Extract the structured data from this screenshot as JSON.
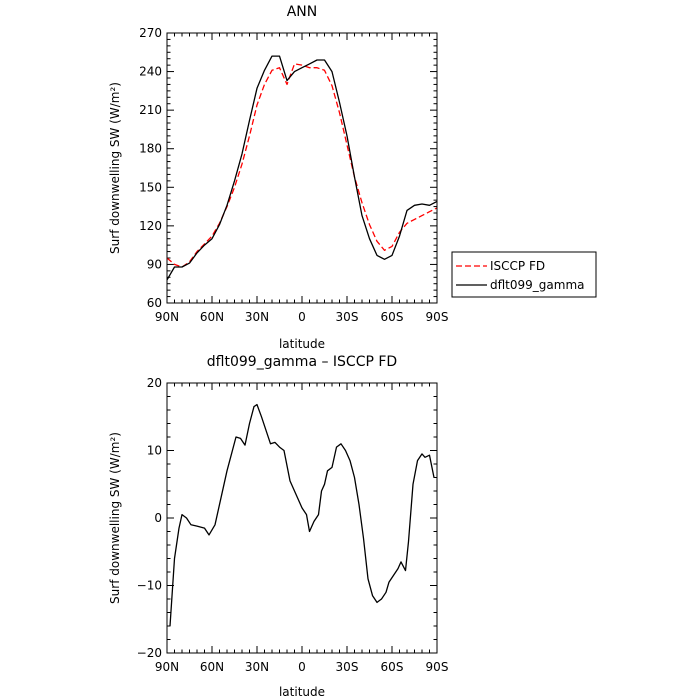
{
  "chart_data": [
    {
      "type": "line",
      "title": "ANN",
      "xlabel": "latitude",
      "ylabel": "Surf downwelling SW (W/m²)",
      "xlim": [
        90,
        -90
      ],
      "ylim": [
        60,
        270
      ],
      "xticks": [
        90,
        60,
        30,
        0,
        -30,
        -60,
        -90
      ],
      "xtick_labels": [
        "90N",
        "60N",
        "30N",
        "0",
        "30S",
        "60S",
        "90S"
      ],
      "yticks": [
        60,
        90,
        120,
        150,
        180,
        210,
        240,
        270
      ],
      "ytick_labels": [
        "60",
        "90",
        "120",
        "150",
        "180",
        "210",
        "240",
        "270"
      ],
      "legend_position": "outside-right",
      "series": [
        {
          "name": "ISCCP FD",
          "color": "#ff0000",
          "style": "dashed",
          "x": [
            90,
            85,
            80,
            75,
            70,
            65,
            60,
            55,
            50,
            45,
            40,
            35,
            30,
            25,
            20,
            15,
            10,
            5,
            0,
            -5,
            -10,
            -15,
            -20,
            -25,
            -30,
            -35,
            -40,
            -45,
            -50,
            -55,
            -60,
            -65,
            -70,
            -75,
            -80,
            -85,
            -90
          ],
          "y": [
            95,
            90,
            88,
            92,
            100,
            106,
            112,
            122,
            135,
            150,
            168,
            190,
            214,
            230,
            241,
            243,
            230,
            246,
            245,
            243,
            243,
            241,
            229,
            208,
            183,
            158,
            138,
            121,
            108,
            101,
            104,
            115,
            122,
            125,
            128,
            131,
            134
          ]
        },
        {
          "name": "dflt099_gamma",
          "color": "#000000",
          "style": "solid",
          "x": [
            90,
            85,
            80,
            75,
            70,
            65,
            60,
            55,
            50,
            45,
            40,
            35,
            30,
            25,
            20,
            15,
            10,
            5,
            0,
            -5,
            -10,
            -15,
            -20,
            -25,
            -30,
            -35,
            -40,
            -45,
            -50,
            -55,
            -60,
            -65,
            -70,
            -75,
            -80,
            -85,
            -90
          ],
          "y": [
            78,
            88,
            88,
            91,
            99,
            105,
            110,
            121,
            136,
            155,
            176,
            202,
            227,
            241,
            252,
            252,
            233,
            240,
            243,
            246,
            249,
            249,
            240,
            216,
            190,
            158,
            128,
            110,
            97,
            94,
            97,
            112,
            132,
            136,
            137,
            136,
            139
          ]
        }
      ]
    },
    {
      "type": "line",
      "title": "dflt099_gamma – ISCCP FD",
      "xlabel": "latitude",
      "ylabel": "Surf downwelling SW (W/m²)",
      "xlim": [
        90,
        -90
      ],
      "ylim": [
        -20,
        20
      ],
      "xticks": [
        90,
        60,
        30,
        0,
        -30,
        -60,
        -90
      ],
      "xtick_labels": [
        "90N",
        "60N",
        "30N",
        "0",
        "30S",
        "60S",
        "90S"
      ],
      "yticks": [
        -20,
        -10,
        0,
        10,
        20
      ],
      "ytick_labels": [
        "−20",
        "−10",
        "0",
        "10",
        "20"
      ],
      "series": [
        {
          "color": "#000000",
          "style": "solid",
          "x": [
            88,
            85,
            82,
            80,
            77,
            74,
            70,
            65,
            62,
            58,
            54,
            50,
            47,
            44,
            41,
            38,
            35,
            32,
            30,
            27,
            24,
            21,
            18,
            15,
            12,
            8,
            5,
            3,
            0,
            -3,
            -5,
            -8,
            -11,
            -13,
            -15,
            -17,
            -20,
            -23,
            -26,
            -29,
            -32,
            -35,
            -38,
            -41,
            -44,
            -47,
            -50,
            -53,
            -56,
            -58,
            -61,
            -64,
            -66,
            -69,
            -71,
            -74,
            -77,
            -80,
            -82,
            -85,
            -88
          ],
          "y": [
            -16,
            -6,
            -1.5,
            0.5,
            0,
            -1,
            -1.2,
            -1.5,
            -2.5,
            -1,
            3,
            7,
            9.5,
            12,
            11.8,
            10.8,
            14,
            16.5,
            16.8,
            15,
            13,
            11,
            11.2,
            10.5,
            10,
            5.5,
            4,
            3,
            1.5,
            0.5,
            -2,
            -0.5,
            0.5,
            4,
            5,
            7,
            7.5,
            10.5,
            11,
            10,
            8.5,
            6,
            2,
            -3,
            -9,
            -11.5,
            -12.5,
            -12,
            -11,
            -9.5,
            -8.5,
            -7.5,
            -6.5,
            -7.8,
            -3.5,
            5,
            8.5,
            9.5,
            9,
            9.3,
            6
          ]
        }
      ]
    }
  ],
  "legend": {
    "items": [
      {
        "label": "ISCCP FD",
        "color": "#ff0000",
        "style": "dashed"
      },
      {
        "label": "dflt099_gamma",
        "color": "#000000",
        "style": "solid"
      }
    ]
  }
}
